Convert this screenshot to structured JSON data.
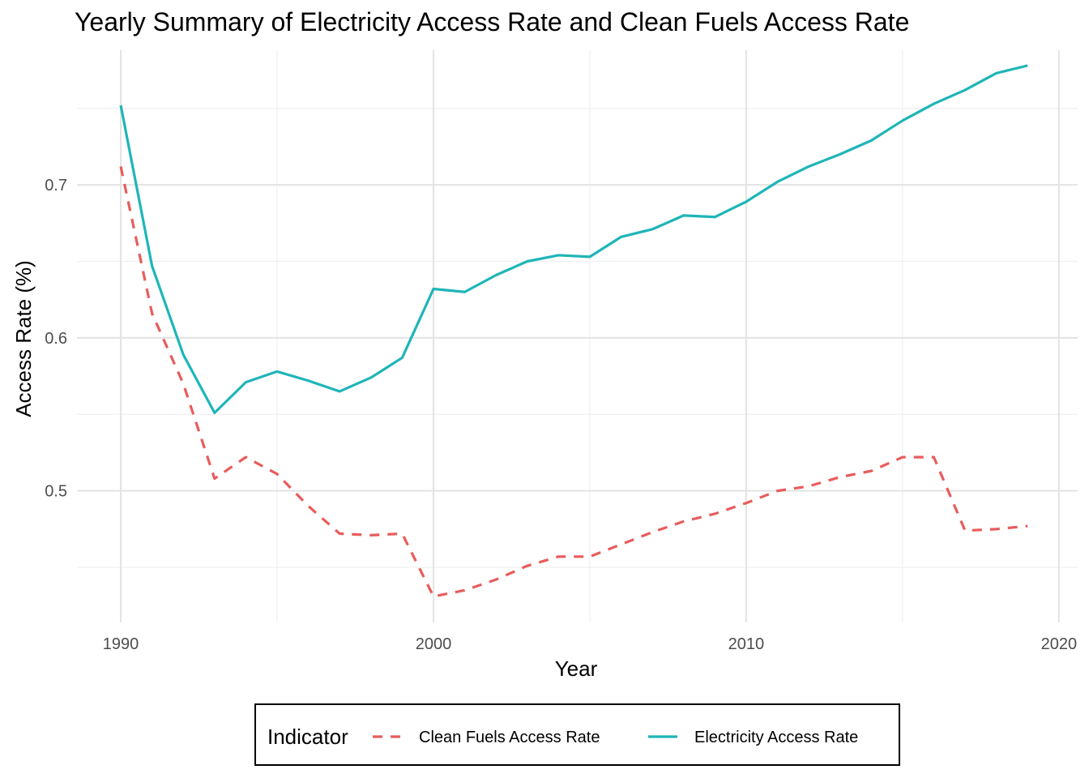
{
  "chart_data": {
    "type": "line",
    "title": "Yearly Summary of Electricity Access Rate and Clean Fuels Access Rate",
    "xlabel": "Year",
    "ylabel": "Access Rate (%)",
    "xlim": [
      1988.6,
      2020.6
    ],
    "ylim": [
      0.414,
      0.788
    ],
    "x_ticks": [
      1990,
      2000,
      2010,
      2020
    ],
    "y_ticks": [
      0.5,
      0.6,
      0.7
    ],
    "x_tick_labels": [
      "1990",
      "2000",
      "2010",
      "2020"
    ],
    "y_tick_labels": [
      "0.5",
      "0.6",
      "0.7"
    ],
    "grid": true,
    "legend": {
      "title": "Indicator",
      "position": "bottom"
    },
    "x": [
      1990,
      1991,
      1992,
      1993,
      1994,
      1995,
      1996,
      1997,
      1998,
      1999,
      2000,
      2001,
      2002,
      2003,
      2004,
      2005,
      2006,
      2007,
      2008,
      2009,
      2010,
      2011,
      2012,
      2013,
      2014,
      2015,
      2016,
      2017,
      2018,
      2019
    ],
    "series": [
      {
        "name": "Clean Fuels Access Rate",
        "color": "#e85c5c",
        "dash": "dashed",
        "values": [
          0.712,
          0.616,
          0.57,
          0.508,
          0.522,
          0.511,
          0.49,
          0.472,
          0.471,
          0.472,
          0.431,
          0.435,
          0.442,
          0.451,
          0.457,
          0.457,
          0.465,
          0.473,
          0.48,
          0.485,
          0.492,
          0.5,
          0.503,
          0.509,
          0.513,
          0.522,
          0.522,
          0.474,
          0.475,
          0.477
        ]
      },
      {
        "name": "Electricity Access Rate",
        "color": "#1fb5b9",
        "dash": "solid",
        "values": [
          0.752,
          0.647,
          0.589,
          0.551,
          0.571,
          0.578,
          0.572,
          0.565,
          0.574,
          0.587,
          0.632,
          0.63,
          0.641,
          0.65,
          0.654,
          0.653,
          0.666,
          0.671,
          0.68,
          0.679,
          0.689,
          0.702,
          0.712,
          0.72,
          0.729,
          0.742,
          0.753,
          0.762,
          0.773,
          0.778
        ]
      }
    ]
  }
}
